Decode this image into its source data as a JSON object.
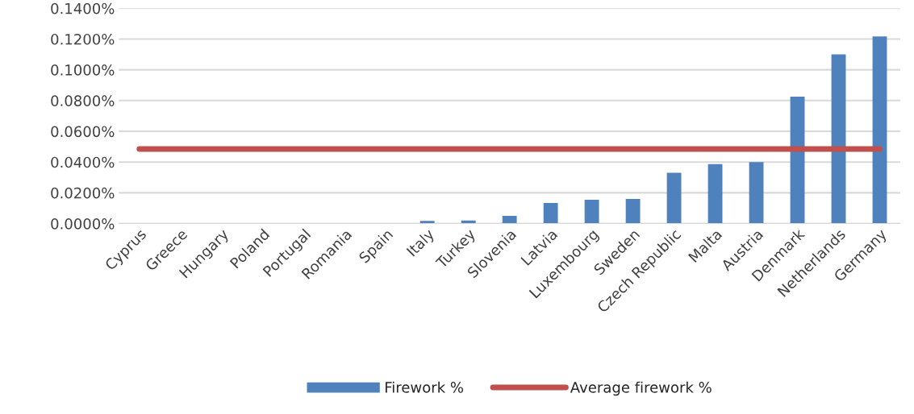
{
  "chart_data": {
    "type": "bar",
    "categories": [
      "Cyprus",
      "Greece",
      "Hungary",
      "Poland",
      "Portugal",
      "Romania",
      "Spain",
      "Italy",
      "Turkey",
      "Slovenia",
      "Latvia",
      "Luxembourg",
      "Sweden",
      "Czech Republic",
      "Malta",
      "Austria",
      "Denmark",
      "Netherlands",
      "Germany"
    ],
    "series": [
      {
        "name": "Firework %",
        "color": "#4f81bd",
        "values": [
          0,
          0,
          0,
          0,
          0,
          0,
          0,
          0.0017,
          0.002,
          0.005,
          0.0134,
          0.0155,
          0.016,
          0.033,
          0.0386,
          0.04,
          0.0825,
          0.11,
          0.1217
        ]
      },
      {
        "name": "Average firework %",
        "type": "line",
        "color": "#c0504d",
        "values": [
          0.0485,
          0.0485,
          0.0485,
          0.0485,
          0.0485,
          0.0485,
          0.0485,
          0.0485,
          0.0485,
          0.0485,
          0.0485,
          0.0485,
          0.0485,
          0.0485,
          0.0485,
          0.0485,
          0.0485,
          0.0485,
          0.0485
        ]
      }
    ],
    "ylim": [
      0,
      0.14
    ],
    "yticks": [
      {
        "value": 0,
        "label": "0.0000%"
      },
      {
        "value": 0.02,
        "label": "0.0200%"
      },
      {
        "value": 0.04,
        "label": "0.0400%"
      },
      {
        "value": 0.06,
        "label": "0.0600%"
      },
      {
        "value": 0.08,
        "label": "0.0800%"
      },
      {
        "value": 0.1,
        "label": "0.1000%"
      },
      {
        "value": 0.12,
        "label": "0.1200%"
      },
      {
        "value": 0.14,
        "label": "0.1400%"
      }
    ],
    "grid": "y",
    "legend": "bottom"
  }
}
